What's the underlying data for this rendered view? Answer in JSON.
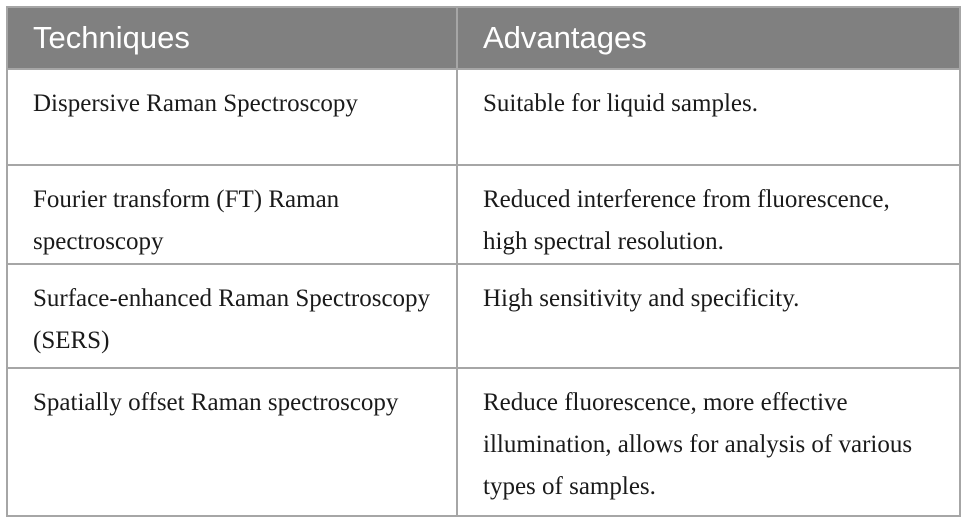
{
  "table": {
    "headers": [
      "Techniques",
      "Advantages"
    ],
    "rows": [
      {
        "technique": "Dispersive Raman Spectroscopy",
        "advantage": "Suitable for liquid samples."
      },
      {
        "technique": "Fourier transform (FT) Raman spectroscopy",
        "advantage": "Reduced interference from fluorescence, high spectral resolution."
      },
      {
        "technique": "Surface-enhanced Raman Spectroscopy (SERS)",
        "advantage": "High sensitivity and specificity."
      },
      {
        "technique": "Spatially offset Raman spectroscopy",
        "advantage": "Reduce fluorescence, more effective illumination, allows for analysis of various types of samples."
      }
    ],
    "colors": {
      "header_bg": "#808080",
      "header_text": "#ffffff",
      "border": "#a6a6a6",
      "body_text": "#1a1a1a"
    }
  }
}
